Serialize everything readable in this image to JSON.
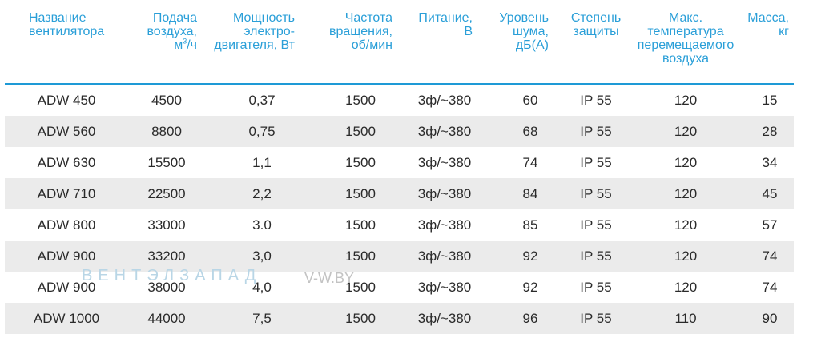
{
  "headers": [
    {
      "lines": [
        "Название",
        "вентилятора"
      ]
    },
    {
      "lines": [
        "Подача",
        "воздуха,"
      ],
      "unit_base": "м",
      "unit_sup": "3",
      "unit_rest": "/ч"
    },
    {
      "lines": [
        "Мощность",
        "электро-",
        "двигателя, Вт"
      ]
    },
    {
      "lines": [
        "Частота",
        "вращения,",
        "об/мин"
      ]
    },
    {
      "lines": [
        "Питание,",
        "В"
      ]
    },
    {
      "lines": [
        "Уровень",
        "шума,",
        "дБ(А)"
      ]
    },
    {
      "lines": [
        "Степень",
        "защиты"
      ]
    },
    {
      "lines": [
        "Макс.",
        "температура",
        "перемещаемого",
        "воздуха"
      ]
    },
    {
      "lines": [
        "Масса,",
        "кг"
      ]
    }
  ],
  "rows": [
    [
      "ADW 450",
      "4500",
      "0,37",
      "1500",
      "3ф/~380",
      "60",
      "IP 55",
      "120",
      "15"
    ],
    [
      "ADW 560",
      "8800",
      "0,75",
      "1500",
      "3ф/~380",
      "68",
      "IP 55",
      "120",
      "28"
    ],
    [
      "ADW 630",
      "15500",
      "1,1",
      "1500",
      "3ф/~380",
      "74",
      "IP 55",
      "120",
      "34"
    ],
    [
      "ADW 710",
      "22500",
      "2,2",
      "1500",
      "3ф/~380",
      "84",
      "IP 55",
      "120",
      "45"
    ],
    [
      "ADW 800",
      "33000",
      "3.0",
      "1500",
      "3ф/~380",
      "85",
      "IP 55",
      "120",
      "57"
    ],
    [
      "ADW 900",
      "33200",
      "3,0",
      "1500",
      "3ф/~380",
      "92",
      "IP 55",
      "120",
      "74"
    ],
    [
      "ADW 900",
      "38000",
      "4,0",
      "1500",
      "3ф/~380",
      "92",
      "IP 55",
      "120",
      "74"
    ],
    [
      "ADW 1000",
      "44000",
      "7,5",
      "1500",
      "3ф/~380",
      "96",
      "IP 55",
      "110",
      "90"
    ]
  ],
  "watermark": {
    "brand": "ВЕНТЭЛЗАПАД",
    "site": "V-W.BY"
  },
  "colors": {
    "header_text": "#2a9fd8",
    "rule": "#1e9ad6",
    "stripe": "#ebebeb"
  }
}
